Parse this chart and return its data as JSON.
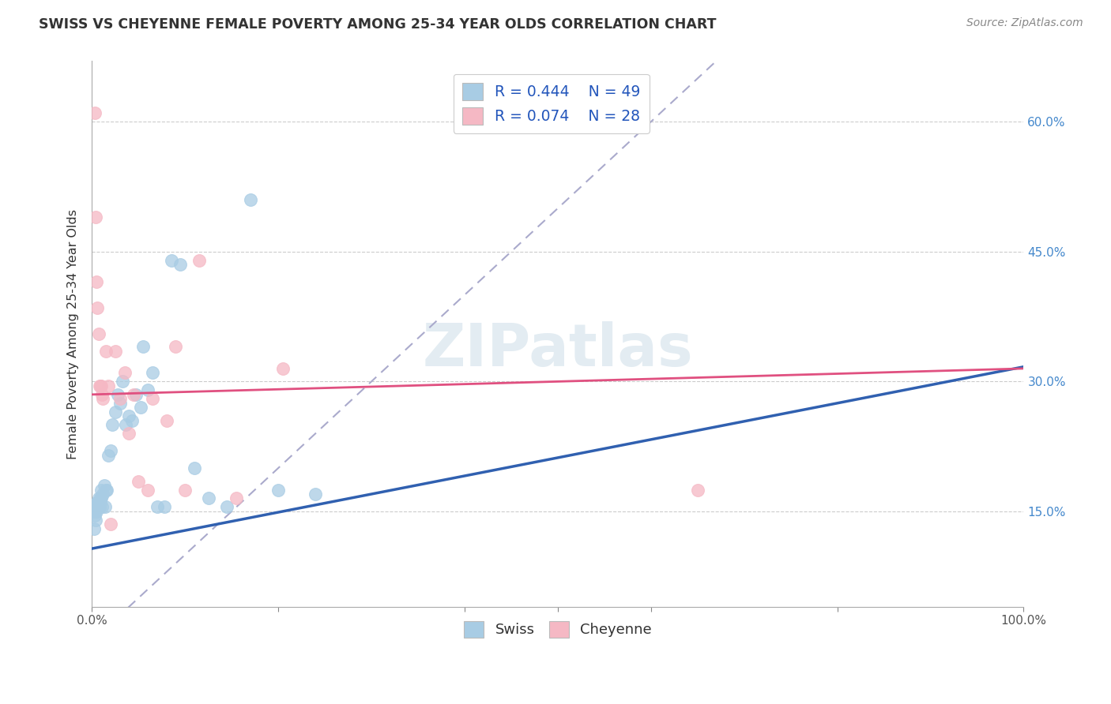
{
  "title": "SWISS VS CHEYENNE FEMALE POVERTY AMONG 25-34 YEAR OLDS CORRELATION CHART",
  "source": "Source: ZipAtlas.com",
  "ylabel": "Female Poverty Among 25-34 Year Olds",
  "xlim": [
    0,
    1.0
  ],
  "ylim": [
    0.04,
    0.67
  ],
  "yticks": [
    0.15,
    0.3,
    0.45,
    0.6
  ],
  "yticklabels": [
    "15.0%",
    "30.0%",
    "45.0%",
    "60.0%"
  ],
  "swiss_R": 0.444,
  "swiss_N": 49,
  "cheyenne_R": 0.074,
  "cheyenne_N": 28,
  "swiss_color": "#a8cce4",
  "cheyenne_color": "#f5b8c4",
  "swiss_line_color": "#3060b0",
  "cheyenne_line_color": "#e05080",
  "ref_line_color": "#aaaacc",
  "background_color": "#ffffff",
  "watermark": "ZIPatlas",
  "swiss_x": [
    0.002,
    0.003,
    0.003,
    0.004,
    0.004,
    0.005,
    0.005,
    0.005,
    0.006,
    0.006,
    0.007,
    0.007,
    0.008,
    0.008,
    0.009,
    0.009,
    0.01,
    0.01,
    0.011,
    0.012,
    0.013,
    0.014,
    0.015,
    0.016,
    0.018,
    0.02,
    0.022,
    0.025,
    0.028,
    0.03,
    0.033,
    0.036,
    0.04,
    0.043,
    0.047,
    0.052,
    0.055,
    0.06,
    0.065,
    0.07,
    0.078,
    0.085,
    0.095,
    0.11,
    0.125,
    0.145,
    0.17,
    0.2,
    0.24
  ],
  "swiss_y": [
    0.13,
    0.145,
    0.15,
    0.155,
    0.14,
    0.155,
    0.16,
    0.15,
    0.155,
    0.16,
    0.155,
    0.165,
    0.155,
    0.155,
    0.16,
    0.165,
    0.165,
    0.175,
    0.155,
    0.17,
    0.18,
    0.155,
    0.175,
    0.175,
    0.215,
    0.22,
    0.25,
    0.265,
    0.285,
    0.275,
    0.3,
    0.25,
    0.26,
    0.255,
    0.285,
    0.27,
    0.34,
    0.29,
    0.31,
    0.155,
    0.155,
    0.44,
    0.435,
    0.2,
    0.165,
    0.155,
    0.51,
    0.175,
    0.17
  ],
  "cheyenne_x": [
    0.003,
    0.004,
    0.005,
    0.006,
    0.007,
    0.008,
    0.009,
    0.01,
    0.011,
    0.012,
    0.015,
    0.018,
    0.02,
    0.025,
    0.03,
    0.035,
    0.04,
    0.045,
    0.05,
    0.06,
    0.065,
    0.08,
    0.09,
    0.1,
    0.115,
    0.155,
    0.205,
    0.65
  ],
  "cheyenne_y": [
    0.61,
    0.49,
    0.415,
    0.385,
    0.355,
    0.295,
    0.295,
    0.295,
    0.285,
    0.28,
    0.335,
    0.295,
    0.135,
    0.335,
    0.28,
    0.31,
    0.24,
    0.285,
    0.185,
    0.175,
    0.28,
    0.255,
    0.34,
    0.175,
    0.44,
    0.165,
    0.315,
    0.175
  ],
  "swiss_reg": [
    0.107,
    0.317
  ],
  "cheyenne_reg": [
    0.285,
    0.315
  ]
}
